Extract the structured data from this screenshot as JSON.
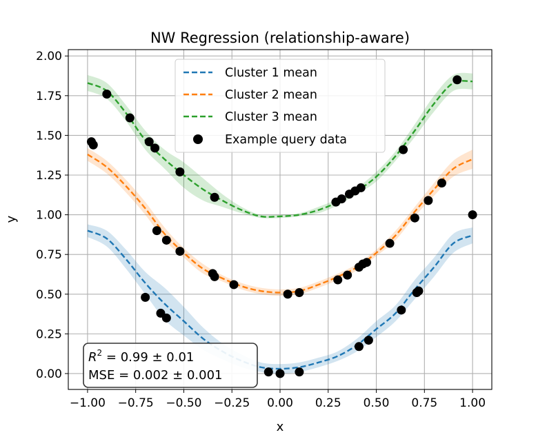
{
  "chart_data": {
    "type": "line",
    "title": "NW Regression (relationship-aware)",
    "xlabel": "x",
    "ylabel": "y",
    "xlim": [
      -1.1,
      1.1
    ],
    "ylim": [
      -0.1,
      2.04
    ],
    "grid": true,
    "legend_position": "top-center",
    "x_ticks": [
      "−1.00",
      "−0.75",
      "−0.50",
      "−0.25",
      "0.00",
      "0.25",
      "0.50",
      "0.75",
      "1.00"
    ],
    "y_ticks": [
      "0.00",
      "0.25",
      "0.50",
      "0.75",
      "1.00",
      "1.25",
      "1.50",
      "1.75",
      "2.00"
    ],
    "colors": {
      "cluster1": "#1f77b4",
      "cluster2": "#ff7f0e",
      "cluster3": "#2ca02c",
      "query": "#000000"
    },
    "series": [
      {
        "name": "Cluster 1 mean",
        "style": "dashed",
        "x": [
          -1.0,
          -0.9,
          -0.8,
          -0.7,
          -0.6,
          -0.5,
          -0.4,
          -0.3,
          -0.2,
          -0.1,
          0.0,
          0.1,
          0.2,
          0.3,
          0.4,
          0.5,
          0.6,
          0.7,
          0.8,
          0.9,
          1.0
        ],
        "y": [
          0.9,
          0.85,
          0.72,
          0.57,
          0.44,
          0.33,
          0.22,
          0.14,
          0.08,
          0.04,
          0.03,
          0.04,
          0.07,
          0.11,
          0.18,
          0.28,
          0.38,
          0.53,
          0.67,
          0.82,
          0.87
        ],
        "band": [
          0.04,
          0.05,
          0.06,
          0.07,
          0.1,
          0.09,
          0.07,
          0.05,
          0.04,
          0.03,
          0.03,
          0.03,
          0.03,
          0.03,
          0.04,
          0.05,
          0.05,
          0.06,
          0.06,
          0.06,
          0.05
        ]
      },
      {
        "name": "Cluster 2 mean",
        "style": "dashed",
        "x": [
          -1.0,
          -0.9,
          -0.8,
          -0.7,
          -0.6,
          -0.5,
          -0.4,
          -0.3,
          -0.2,
          -0.1,
          0.0,
          0.1,
          0.2,
          0.3,
          0.4,
          0.5,
          0.6,
          0.7,
          0.8,
          0.9,
          1.0
        ],
        "y": [
          1.38,
          1.3,
          1.18,
          1.04,
          0.88,
          0.76,
          0.66,
          0.6,
          0.55,
          0.52,
          0.51,
          0.52,
          0.56,
          0.61,
          0.67,
          0.76,
          0.87,
          1.02,
          1.16,
          1.29,
          1.35
        ],
        "band": [
          0.04,
          0.04,
          0.04,
          0.04,
          0.04,
          0.03,
          0.03,
          0.02,
          0.02,
          0.02,
          0.02,
          0.02,
          0.02,
          0.02,
          0.02,
          0.02,
          0.03,
          0.03,
          0.04,
          0.05,
          0.06
        ]
      },
      {
        "name": "Cluster 3 mean",
        "style": "dashed",
        "x": [
          -1.0,
          -0.9,
          -0.8,
          -0.7,
          -0.6,
          -0.5,
          -0.4,
          -0.3,
          -0.2,
          -0.1,
          0.0,
          0.1,
          0.2,
          0.3,
          0.4,
          0.5,
          0.6,
          0.7,
          0.8,
          0.9,
          1.0
        ],
        "y": [
          1.83,
          1.78,
          1.64,
          1.47,
          1.35,
          1.25,
          1.16,
          1.09,
          1.03,
          0.99,
          0.99,
          1.0,
          1.03,
          1.08,
          1.15,
          1.24,
          1.37,
          1.53,
          1.7,
          1.83,
          1.84
        ],
        "band": [
          0.05,
          0.05,
          0.05,
          0.06,
          0.06,
          0.08,
          0.07,
          0.04,
          0.02,
          0.01,
          0.01,
          0.01,
          0.02,
          0.02,
          0.02,
          0.03,
          0.03,
          0.04,
          0.05,
          0.05,
          0.05
        ]
      }
    ],
    "scatter": {
      "name": "Example query data",
      "points": [
        [
          -0.98,
          1.46
        ],
        [
          -0.97,
          1.44
        ],
        [
          -0.9,
          1.76
        ],
        [
          -0.78,
          1.61
        ],
        [
          -0.68,
          1.46
        ],
        [
          -0.65,
          1.42
        ],
        [
          -0.52,
          1.27
        ],
        [
          -0.34,
          1.11
        ],
        [
          -0.64,
          0.9
        ],
        [
          -0.59,
          0.84
        ],
        [
          -0.52,
          0.77
        ],
        [
          -0.35,
          0.63
        ],
        [
          -0.34,
          0.61
        ],
        [
          -0.24,
          0.56
        ],
        [
          0.04,
          0.5
        ],
        [
          0.1,
          0.51
        ],
        [
          -0.7,
          0.48
        ],
        [
          -0.62,
          0.38
        ],
        [
          -0.59,
          0.35
        ],
        [
          -0.06,
          0.01
        ],
        [
          0.0,
          0.0
        ],
        [
          0.1,
          0.01
        ],
        [
          0.29,
          1.08
        ],
        [
          0.32,
          1.1
        ],
        [
          0.36,
          1.13
        ],
        [
          0.39,
          1.15
        ],
        [
          0.42,
          1.17
        ],
        [
          0.64,
          1.41
        ],
        [
          0.92,
          1.85
        ],
        [
          1.0,
          1.0
        ],
        [
          0.3,
          0.59
        ],
        [
          0.35,
          0.62
        ],
        [
          0.41,
          0.67
        ],
        [
          0.43,
          0.69
        ],
        [
          0.45,
          0.7
        ],
        [
          0.57,
          0.82
        ],
        [
          0.7,
          0.98
        ],
        [
          0.77,
          1.09
        ],
        [
          0.84,
          1.2
        ],
        [
          0.41,
          0.17
        ],
        [
          0.46,
          0.21
        ],
        [
          0.63,
          0.4
        ],
        [
          0.71,
          0.51
        ],
        [
          0.72,
          0.52
        ]
      ]
    },
    "annotation": {
      "r2_value": "0.99",
      "r2_pm": "0.01",
      "mse_label": "MSE",
      "mse_value": "0.002",
      "mse_pm": "0.001"
    }
  }
}
